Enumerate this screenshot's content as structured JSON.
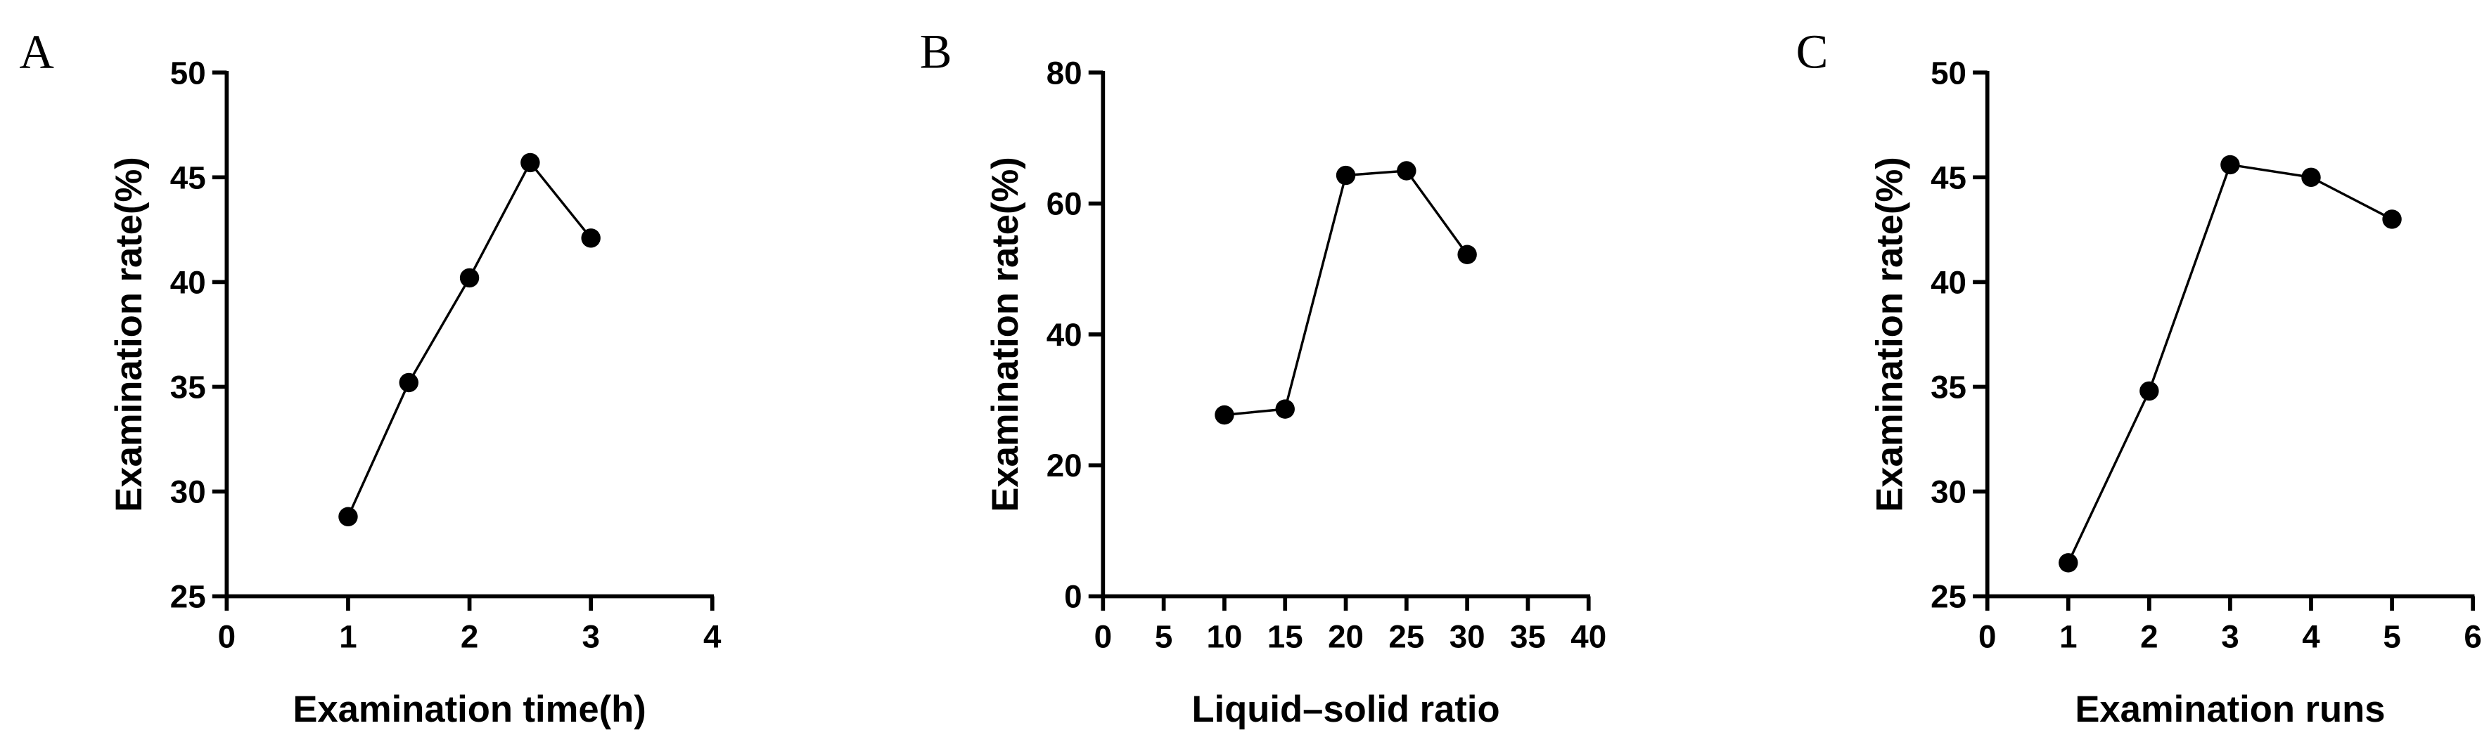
{
  "chart_data": [
    {
      "type": "line",
      "label": "A",
      "xlabel": "Examination time(h)",
      "ylabel": "Examination rate(%)",
      "x": [
        1,
        1.5,
        2,
        2.5,
        3
      ],
      "values": [
        28.8,
        35.2,
        40.2,
        45.7,
        42.1
      ],
      "color": "#000000",
      "xlim": [
        0,
        4
      ],
      "xticks": [
        0,
        1,
        2,
        3,
        4
      ],
      "ylim": [
        25,
        50
      ],
      "yticks": [
        25,
        30,
        35,
        40,
        45,
        50
      ]
    },
    {
      "type": "line",
      "label": "B",
      "xlabel": "Liquid–solid ratio",
      "ylabel": "Examination rate(%)",
      "x": [
        10,
        15,
        20,
        25,
        30
      ],
      "values": [
        27.7,
        28.6,
        64.3,
        65,
        52.2
      ],
      "color": "#000000",
      "xlim": [
        0,
        40
      ],
      "xticks": [
        0,
        5,
        10,
        15,
        20,
        25,
        30,
        35,
        40
      ],
      "ylim": [
        0,
        80
      ],
      "yticks": [
        0,
        20,
        40,
        60,
        80
      ]
    },
    {
      "type": "line",
      "label": "C",
      "xlabel": "Examination runs",
      "ylabel": "Examination rate(%)",
      "x": [
        1,
        2,
        3,
        4,
        5
      ],
      "values": [
        26.6,
        34.8,
        45.6,
        45,
        43
      ],
      "color": "#000000",
      "xlim": [
        0,
        6
      ],
      "xticks": [
        0,
        1,
        2,
        3,
        4,
        5,
        6
      ],
      "ylim": [
        25,
        50
      ],
      "yticks": [
        25,
        30,
        35,
        40,
        45,
        50
      ]
    }
  ]
}
